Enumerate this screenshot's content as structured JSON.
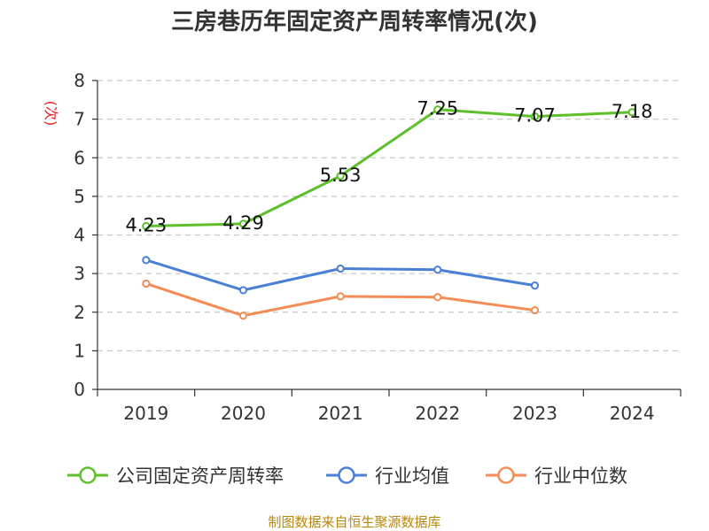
{
  "chart_data": {
    "type": "line",
    "title": "三房巷历年固定资产周转率情况(次)",
    "ylabel": "(次)",
    "xlabel": "",
    "categories": [
      "2019",
      "2020",
      "2021",
      "2022",
      "2023",
      "2024"
    ],
    "ylim": [
      0,
      8
    ],
    "yticks": [
      0,
      1,
      2,
      3,
      4,
      5,
      6,
      7,
      8
    ],
    "grid": true,
    "legend_position": "bottom",
    "series": [
      {
        "name": "公司固定资产周转率",
        "color": "#5dbf2a",
        "values": [
          4.23,
          4.29,
          5.53,
          7.25,
          7.07,
          7.18
        ],
        "labels": [
          "4.23",
          "4.29",
          "5.53",
          "7.25",
          "7.07",
          "7.18"
        ]
      },
      {
        "name": "行业均值",
        "color": "#4a7fd6",
        "values": [
          3.35,
          2.57,
          3.13,
          3.1,
          2.69,
          null
        ]
      },
      {
        "name": "行业中位数",
        "color": "#f58b55",
        "values": [
          2.74,
          1.91,
          2.41,
          2.39,
          2.05,
          null
        ]
      }
    ]
  },
  "source": "制图数据来自恒生聚源数据库"
}
